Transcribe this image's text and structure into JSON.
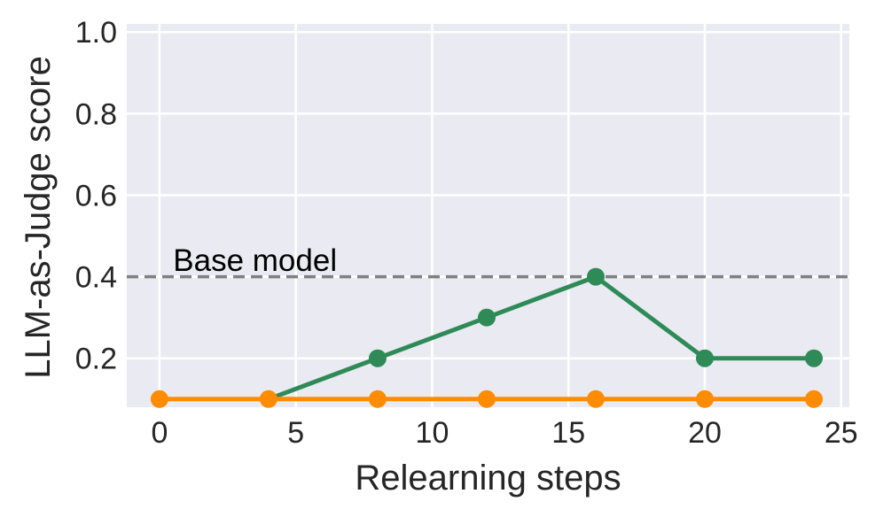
{
  "chart_data": {
    "type": "line",
    "title": "",
    "xlabel": "Relearning steps",
    "ylabel": "LLM-as-Judge score",
    "xlim": [
      -1.2,
      25.3
    ],
    "ylim": [
      0.08,
      1.02
    ],
    "x_ticks": [
      0,
      5,
      10,
      15,
      20,
      25
    ],
    "x_tick_labels": [
      "0",
      "5",
      "10",
      "15",
      "20",
      "25"
    ],
    "y_ticks": [
      0.2,
      0.4,
      0.6,
      0.8,
      1.0
    ],
    "y_tick_labels": [
      "0.2",
      "0.4",
      "0.6",
      "0.8",
      "1.0"
    ],
    "grid": true,
    "background": "#EAEAF2",
    "grid_color": "#FFFFFF",
    "series": [
      {
        "color": "#2E8B57",
        "x": [
          4,
          8,
          12,
          16,
          20,
          24
        ],
        "y": [
          0.1,
          0.2,
          0.3,
          0.4,
          0.2,
          0.2
        ],
        "marker_x": [
          8,
          12,
          16,
          20,
          24
        ],
        "marker_y": [
          0.2,
          0.3,
          0.4,
          0.2,
          0.2
        ]
      },
      {
        "color": "#FF8C00",
        "x": [
          0,
          4,
          8,
          12,
          16,
          20,
          24
        ],
        "y": [
          0.1,
          0.1,
          0.1,
          0.1,
          0.1,
          0.1,
          0.1
        ],
        "marker_x": [
          0,
          4,
          8,
          12,
          16,
          20,
          24
        ],
        "marker_y": [
          0.1,
          0.1,
          0.1,
          0.1,
          0.1,
          0.1,
          0.1
        ]
      }
    ],
    "reference_lines": [
      {
        "type": "horizontal",
        "y": 0.4,
        "color": "#808080",
        "style": "dashed",
        "label": "Base model",
        "label_x": 0.5,
        "label_y": 0.44
      }
    ]
  }
}
